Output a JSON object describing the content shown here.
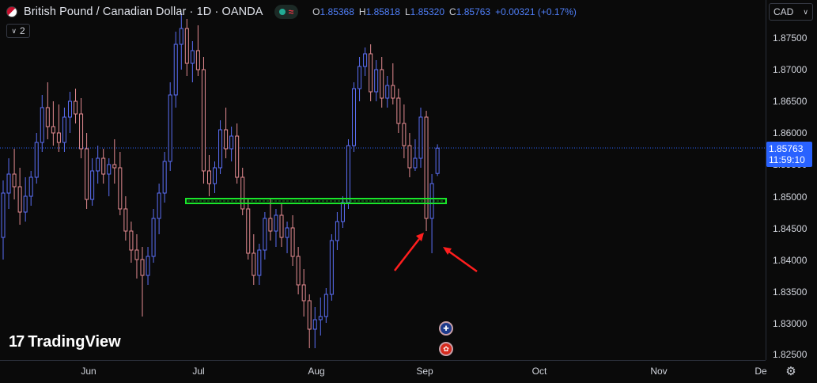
{
  "header": {
    "symbol_title": "British Pound / Canadian Dollar · 1D · OANDA",
    "status_icon": "wave-icon",
    "ohlc": {
      "o_label": "O",
      "o_value": "1.85368",
      "h_label": "H",
      "h_value": "1.85818",
      "l_label": "L",
      "l_value": "1.85320",
      "c_label": "C",
      "c_value": "1.85763",
      "change": "+0.00321 (+0.17%)"
    },
    "collapse_count": "2"
  },
  "currency": {
    "label": "CAD"
  },
  "price_tag": {
    "price": "1.85763",
    "countdown": "11:59:10"
  },
  "price_axis": [
    "1.87500",
    "1.87000",
    "1.86500",
    "1.86000",
    "1.85500",
    "1.85000",
    "1.84500",
    "1.84000",
    "1.83500",
    "1.83000",
    "1.82500"
  ],
  "time_axis": [
    "Jun",
    "Jul",
    "Aug",
    "Sep",
    "Oct",
    "Nov",
    "De"
  ],
  "logo": {
    "text": "TradingView"
  },
  "events": [
    {
      "icon": "gb-flag-icon"
    },
    {
      "icon": "ca-flag-icon"
    }
  ],
  "colors": {
    "up": "#5b6ef5",
    "down": "#e58c92",
    "support": "#19e62a",
    "arrow": "#ff1e1e",
    "accent": "#2962ff"
  },
  "chart_data": {
    "type": "candlestick",
    "symbol": "GBPCAD",
    "ylim": [
      1.8245,
      1.8795
    ],
    "last_price": 1.85763,
    "support_level": 1.8494,
    "candles": [
      [
        1.8435,
        1.8525,
        1.84,
        1.8505
      ],
      [
        1.8505,
        1.856,
        1.848,
        1.8535
      ],
      [
        1.8535,
        1.8575,
        1.8495,
        1.8515
      ],
      [
        1.8515,
        1.8545,
        1.8455,
        1.8475
      ],
      [
        1.8475,
        1.853,
        1.846,
        1.85
      ],
      [
        1.85,
        1.854,
        1.8485,
        1.853
      ],
      [
        1.853,
        1.86,
        1.852,
        1.8585
      ],
      [
        1.8585,
        1.866,
        1.857,
        1.864
      ],
      [
        1.864,
        1.868,
        1.859,
        1.861
      ],
      [
        1.861,
        1.865,
        1.858,
        1.86
      ],
      [
        1.86,
        1.8645,
        1.857,
        1.8585
      ],
      [
        1.8585,
        1.864,
        1.857,
        1.8625
      ],
      [
        1.8625,
        1.8665,
        1.86,
        1.865
      ],
      [
        1.865,
        1.867,
        1.8615,
        1.863
      ],
      [
        1.863,
        1.8655,
        1.856,
        1.8575
      ],
      [
        1.8575,
        1.86,
        1.848,
        1.8495
      ],
      [
        1.8495,
        1.856,
        1.8485,
        1.854
      ],
      [
        1.854,
        1.858,
        1.852,
        1.856
      ],
      [
        1.856,
        1.8575,
        1.852,
        1.8535
      ],
      [
        1.8535,
        1.856,
        1.85,
        1.855
      ],
      [
        1.855,
        1.859,
        1.852,
        1.8545
      ],
      [
        1.8545,
        1.857,
        1.847,
        1.848
      ],
      [
        1.848,
        1.85,
        1.843,
        1.8445
      ],
      [
        1.8445,
        1.846,
        1.8395,
        1.8415
      ],
      [
        1.8415,
        1.844,
        1.837,
        1.84
      ],
      [
        1.84,
        1.842,
        1.831,
        1.8375
      ],
      [
        1.8375,
        1.842,
        1.836,
        1.8405
      ],
      [
        1.8405,
        1.848,
        1.8395,
        1.8465
      ],
      [
        1.8465,
        1.852,
        1.844,
        1.8505
      ],
      [
        1.8505,
        1.857,
        1.849,
        1.8555
      ],
      [
        1.8555,
        1.868,
        1.854,
        1.866
      ],
      [
        1.866,
        1.876,
        1.864,
        1.874
      ],
      [
        1.874,
        1.879,
        1.87,
        1.8765
      ],
      [
        1.8765,
        1.878,
        1.869,
        1.871
      ],
      [
        1.871,
        1.8745,
        1.868,
        1.873
      ],
      [
        1.873,
        1.877,
        1.869,
        1.87
      ],
      [
        1.87,
        1.872,
        1.852,
        1.854
      ],
      [
        1.854,
        1.8565,
        1.85,
        1.852
      ],
      [
        1.852,
        1.8555,
        1.8505,
        1.8545
      ],
      [
        1.8545,
        1.862,
        1.8535,
        1.8605
      ],
      [
        1.8605,
        1.864,
        1.856,
        1.8575
      ],
      [
        1.8575,
        1.861,
        1.8555,
        1.8595
      ],
      [
        1.8595,
        1.8615,
        1.852,
        1.853
      ],
      [
        1.853,
        1.8545,
        1.847,
        1.848
      ],
      [
        1.848,
        1.8495,
        1.84,
        1.841
      ],
      [
        1.841,
        1.844,
        1.836,
        1.8375
      ],
      [
        1.8375,
        1.8425,
        1.836,
        1.8415
      ],
      [
        1.8415,
        1.8475,
        1.84,
        1.8465
      ],
      [
        1.8465,
        1.8495,
        1.843,
        1.8445
      ],
      [
        1.8445,
        1.848,
        1.842,
        1.847
      ],
      [
        1.847,
        1.849,
        1.842,
        1.8435
      ],
      [
        1.8435,
        1.846,
        1.841,
        1.845
      ],
      [
        1.845,
        1.847,
        1.839,
        1.8405
      ],
      [
        1.8405,
        1.842,
        1.8345,
        1.836
      ],
      [
        1.836,
        1.8385,
        1.831,
        1.8335
      ],
      [
        1.8335,
        1.8345,
        1.826,
        1.829
      ],
      [
        1.829,
        1.8325,
        1.826,
        1.8305
      ],
      [
        1.8305,
        1.834,
        1.828,
        1.831
      ],
      [
        1.831,
        1.8355,
        1.83,
        1.8345
      ],
      [
        1.8345,
        1.844,
        1.8335,
        1.843
      ],
      [
        1.843,
        1.8475,
        1.8415,
        1.846
      ],
      [
        1.846,
        1.85,
        1.845,
        1.849
      ],
      [
        1.849,
        1.859,
        1.848,
        1.858
      ],
      [
        1.858,
        1.868,
        1.857,
        1.867
      ],
      [
        1.867,
        1.872,
        1.865,
        1.8705
      ],
      [
        1.8705,
        1.8735,
        1.869,
        1.8725
      ],
      [
        1.8725,
        1.874,
        1.865,
        1.8665
      ],
      [
        1.8665,
        1.8715,
        1.865,
        1.87
      ],
      [
        1.87,
        1.872,
        1.864,
        1.8655
      ],
      [
        1.8655,
        1.869,
        1.864,
        1.8675
      ],
      [
        1.8675,
        1.871,
        1.8645,
        1.8655
      ],
      [
        1.8655,
        1.867,
        1.86,
        1.8615
      ],
      [
        1.8615,
        1.8645,
        1.856,
        1.858
      ],
      [
        1.858,
        1.86,
        1.853,
        1.8545
      ],
      [
        1.8545,
        1.859,
        1.854,
        1.856
      ],
      [
        1.856,
        1.864,
        1.8545,
        1.8625
      ],
      [
        1.8625,
        1.8635,
        1.8445,
        1.8465
      ],
      [
        1.8465,
        1.8535,
        1.841,
        1.852
      ],
      [
        1.8536,
        1.8582,
        1.8532,
        1.8576
      ]
    ]
  }
}
